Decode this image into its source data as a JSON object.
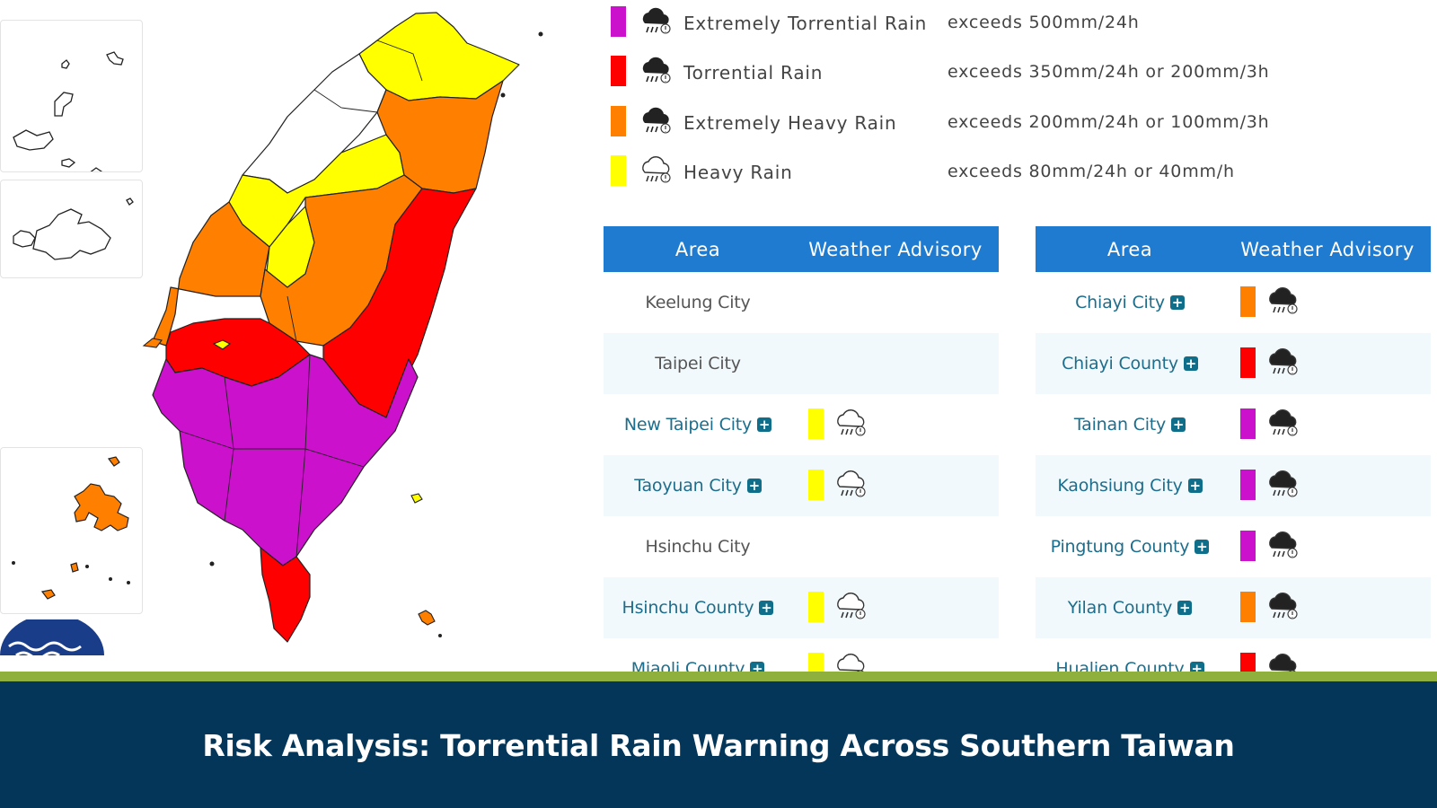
{
  "colors": {
    "extremely_torrential": "#cc11cc",
    "torrential": "#ff0000",
    "extremely_heavy": "#ff8000",
    "heavy": "#ffff00",
    "table_header": "#1e7bd0",
    "footer_bg": "#04365a",
    "footer_strip": "#8fb03c"
  },
  "legend": [
    {
      "label": "Extremely Torrential Rain",
      "threshold": "exceeds 500mm/24h",
      "color": "#cc11cc",
      "icon": "dark-rain-cloud-icon"
    },
    {
      "label": "Torrential Rain",
      "threshold": "exceeds 350mm/24h or 200mm/3h",
      "color": "#ff0000",
      "icon": "dark-rain-cloud-icon"
    },
    {
      "label": "Extremely Heavy Rain",
      "threshold": "exceeds 200mm/24h or 100mm/3h",
      "color": "#ff8000",
      "icon": "dark-rain-cloud-icon"
    },
    {
      "label": "Heavy Rain",
      "threshold": "exceeds 80mm/24h or 40mm/h",
      "color": "#ffff00",
      "icon": "outline-rain-cloud-icon"
    }
  ],
  "table_headers": {
    "area": "Area",
    "advisory": "Weather Advisory"
  },
  "left_table": [
    {
      "area": "Keelung City",
      "link": false,
      "level": null
    },
    {
      "area": "Taipei City",
      "link": false,
      "level": null
    },
    {
      "area": "New Taipei City",
      "link": true,
      "level": "heavy"
    },
    {
      "area": "Taoyuan City",
      "link": true,
      "level": "heavy"
    },
    {
      "area": "Hsinchu City",
      "link": false,
      "level": null
    },
    {
      "area": "Hsinchu County",
      "link": true,
      "level": "heavy"
    },
    {
      "area": "Miaoli County",
      "link": true,
      "level": "heavy"
    }
  ],
  "right_table": [
    {
      "area": "Chiayi City",
      "link": true,
      "level": "extremely_heavy"
    },
    {
      "area": "Chiayi County",
      "link": true,
      "level": "torrential"
    },
    {
      "area": "Tainan City",
      "link": true,
      "level": "extremely_torrential"
    },
    {
      "area": "Kaohsiung City",
      "link": true,
      "level": "extremely_torrential"
    },
    {
      "area": "Pingtung County",
      "link": true,
      "level": "extremely_torrential"
    },
    {
      "area": "Yilan County",
      "link": true,
      "level": "extremely_heavy"
    },
    {
      "area": "Hualien County",
      "link": true,
      "level": "torrential"
    }
  ],
  "map_regions": [
    {
      "region": "north-east coast",
      "level": "heavy"
    },
    {
      "region": "north-west",
      "level": "none"
    },
    {
      "region": "east-north",
      "level": "extremely_heavy"
    },
    {
      "region": "central-west",
      "level": "extremely_heavy"
    },
    {
      "region": "central-inner",
      "level": "heavy"
    },
    {
      "region": "east-central",
      "level": "torrential"
    },
    {
      "region": "chiayi",
      "level": "torrential"
    },
    {
      "region": "south-west",
      "level": "extremely_torrential"
    },
    {
      "region": "south-tip",
      "level": "torrential"
    },
    {
      "region": "penghu-inset",
      "level": "extremely_heavy"
    }
  ],
  "footer": {
    "title": "Risk Analysis: Torrential Rain Warning Across Southern Taiwan"
  }
}
